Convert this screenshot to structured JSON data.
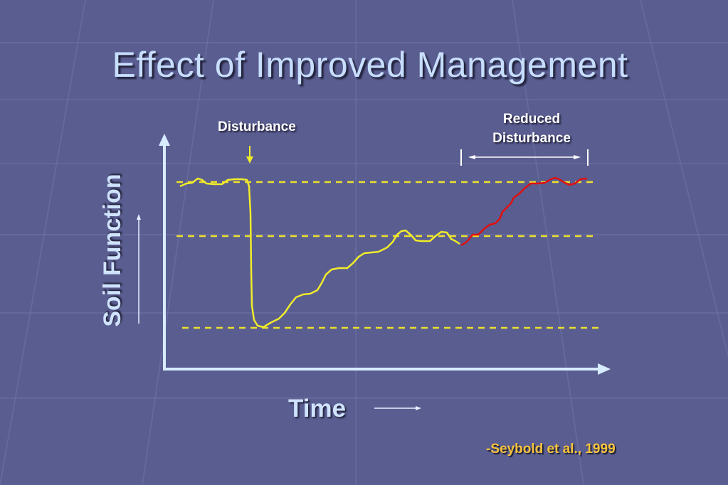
{
  "slide": {
    "title": "Effect of Improved Management",
    "citation": "-Seybold et al., 1999"
  },
  "diagram": {
    "y_axis_label": "Soil Function",
    "x_axis_label": "Time",
    "annotations": {
      "disturbance": "Disturbance",
      "reduced_disturbance": "Reduced Disturbance"
    }
  },
  "colors": {
    "background": "#5a5d90",
    "title": "#c8deff",
    "axis": "#d8ecff",
    "yellow_curve": "#f0ec2a",
    "red_curve": "#e01010",
    "dashed_levels": "#ece12c",
    "citation": "#f6c33a"
  }
}
